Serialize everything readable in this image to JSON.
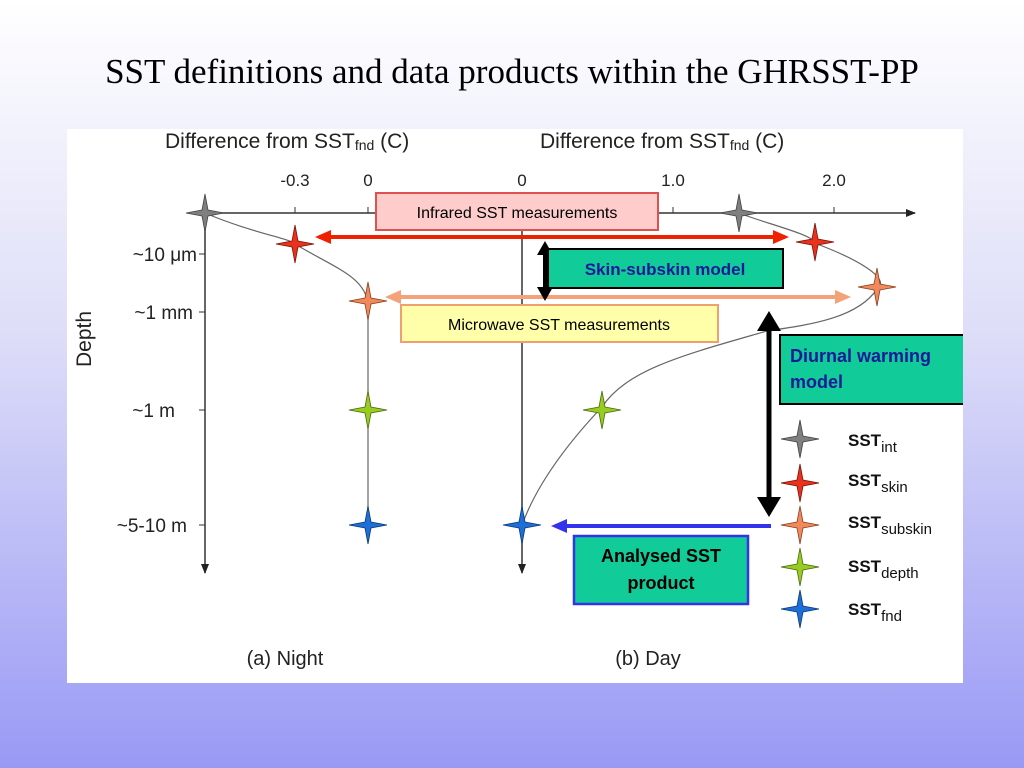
{
  "slide": {
    "title": "SST definitions and data products within the GHRSST-PP"
  },
  "figure": {
    "night_axis_title": "Difference from SST",
    "night_axis_title_sub": "fnd",
    "night_axis_title_unit": " (C)",
    "day_axis_title": "Difference from SST",
    "day_axis_title_sub": "fnd",
    "day_axis_title_unit": " (C)",
    "night_ticks": [
      "-0.3",
      "0"
    ],
    "day_ticks": [
      "0",
      "1.0",
      "2.0"
    ],
    "depth_axis_label": "Depth",
    "depth_labels": [
      "~10 μm",
      "~1 mm",
      "~1 m",
      "~5-10 m"
    ],
    "panel_a_caption": "(a) Night",
    "panel_b_caption": "(b) Day"
  },
  "annotations": {
    "infrared": "Infrared SST measurements",
    "skin_subskin": "Skin-subskin model",
    "microwave": "Microwave SST measurements",
    "diurnal_line1": "Diurnal warming",
    "diurnal_line2": "model",
    "analysed_line1": "Analysed SST",
    "analysed_line2": "product"
  },
  "legend": [
    {
      "base": "SST",
      "sub": "int",
      "color": "#7f7f7f"
    },
    {
      "base": "SST",
      "sub": "skin",
      "color": "#e8321e"
    },
    {
      "base": "SST",
      "sub": "subskin",
      "color": "#f08a5c"
    },
    {
      "base": "SST",
      "sub": "depth",
      "color": "#99cc22"
    },
    {
      "base": "SST",
      "sub": "fnd",
      "color": "#1e6ed8"
    }
  ],
  "colors": {
    "infrared_box_fill": "#ffcccc",
    "infrared_box_border": "#e05050",
    "infrared_arrow": "#ee2200",
    "microwave_box_fill": "#ffffaa",
    "microwave_box_border": "#f0a070",
    "microwave_arrow": "#f4a27a",
    "model_box_fill": "#11cc99",
    "model_text": "#1a1a99",
    "analysed_arrow": "#3333ee"
  }
}
